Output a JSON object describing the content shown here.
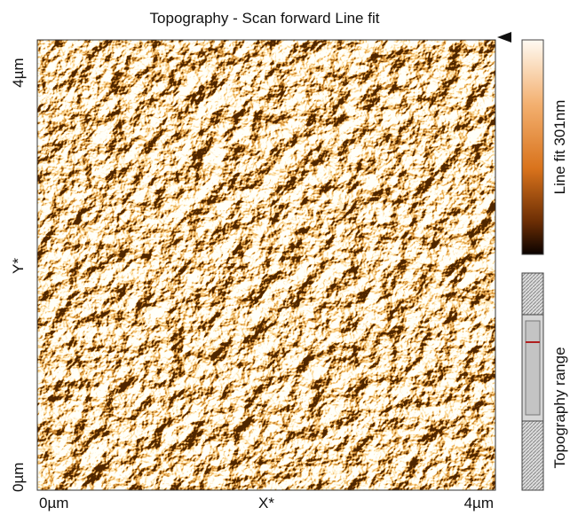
{
  "title": "Topography - Scan forward   Line fit",
  "x_axis": {
    "min_label": "0µm",
    "label": "X*",
    "max_label": "4µm"
  },
  "y_axis": {
    "min_label": "0µm",
    "label": "Y*",
    "max_label": "4µm"
  },
  "colorbar": {
    "label": "Line fit 301nm"
  },
  "range_bar": {
    "label": "Topography range"
  }
}
